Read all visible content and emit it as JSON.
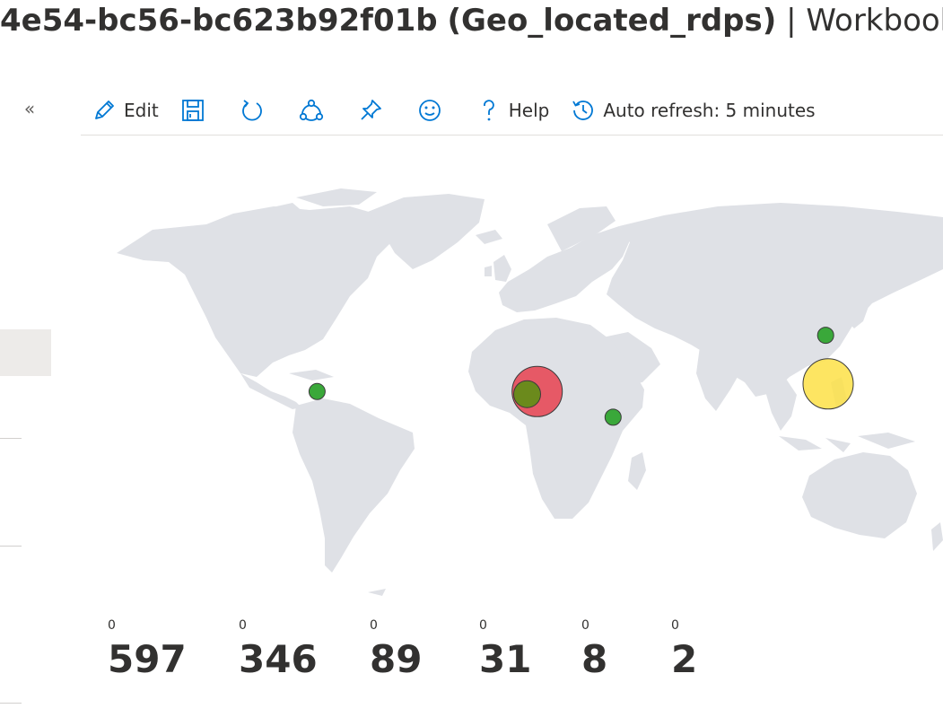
{
  "title": {
    "id_fragment": "4e54-bc56-bc623b92f01b",
    "name": "(Geo_located_rdps)",
    "separator": "|",
    "type": "Workbook",
    "trailing": "|"
  },
  "sidebar": {
    "collapse_icon": "double-chevron-left-icon",
    "collapse_label": "«"
  },
  "toolbar": {
    "edit_label": "Edit",
    "help_label": "Help",
    "auto_refresh_label": "Auto refresh: 5 minutes",
    "icons": [
      "edit-pencil-icon",
      "save-icon",
      "refresh-icon",
      "share-icon",
      "pin-icon",
      "feedback-smiley-icon",
      "help-icon",
      "auto-refresh-clock-icon"
    ],
    "accent_color": "#0078d4"
  },
  "map": {
    "land_color": "#dfe1e6",
    "markers": [
      {
        "region": "Central America",
        "lon": -80,
        "lat": 9,
        "color": "#3aa83a",
        "size": "small"
      },
      {
        "region": "West Africa",
        "lon": 7,
        "lat": 9,
        "color": "#e8414f",
        "size": "large"
      },
      {
        "region": "West Africa",
        "lon": 3,
        "lat": 8,
        "color": "#6b8a1c",
        "size": "medium"
      },
      {
        "region": "East Africa",
        "lon": 37,
        "lat": -1,
        "color": "#3aa83a",
        "size": "small"
      },
      {
        "region": "Philippines",
        "lon": 122,
        "lat": 12,
        "color": "#fde047",
        "size": "large"
      },
      {
        "region": "East China",
        "lon": 121,
        "lat": 31,
        "color": "#3aa83a",
        "size": "small"
      }
    ]
  },
  "tiles": [
    {
      "small": "0",
      "value": "597"
    },
    {
      "small": "0",
      "value": "346"
    },
    {
      "small": "0",
      "value": "89"
    },
    {
      "small": "0",
      "value": "31"
    },
    {
      "small": "0",
      "value": "8"
    },
    {
      "small": "0",
      "value": "2"
    }
  ]
}
